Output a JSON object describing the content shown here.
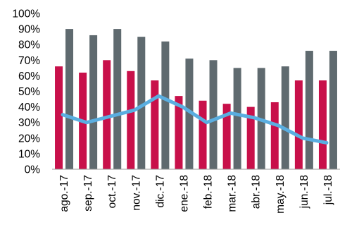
{
  "chart_data": {
    "type": "bar",
    "categories": [
      "ago.-17",
      "sep.-17",
      "oct.-17",
      "nov.-17",
      "dic.-17",
      "ene.-18",
      "feb.-18",
      "mar.-18",
      "abr.-18",
      "may.-18",
      "jun.-18",
      "jul.-18"
    ],
    "y_ticks": [
      "0%",
      "10%",
      "20%",
      "30%",
      "40%",
      "50%",
      "60%",
      "70%",
      "80%",
      "90%",
      "100%"
    ],
    "ylim": [
      0,
      100
    ],
    "grid": false,
    "legend": "none",
    "series": [
      {
        "type": "bar",
        "color": "#c8104a",
        "values": [
          66,
          62,
          70,
          63,
          57,
          47,
          44,
          42,
          40,
          43,
          57,
          57
        ]
      },
      {
        "type": "bar",
        "color": "#5f6a6f",
        "values": [
          90,
          86,
          90,
          85,
          82,
          71,
          70,
          65,
          65,
          66,
          76,
          76
        ]
      },
      {
        "type": "line",
        "color": "#5aaee0",
        "values": [
          35,
          30,
          34,
          38,
          47,
          40,
          30,
          36,
          33,
          28,
          20,
          17
        ]
      }
    ]
  }
}
